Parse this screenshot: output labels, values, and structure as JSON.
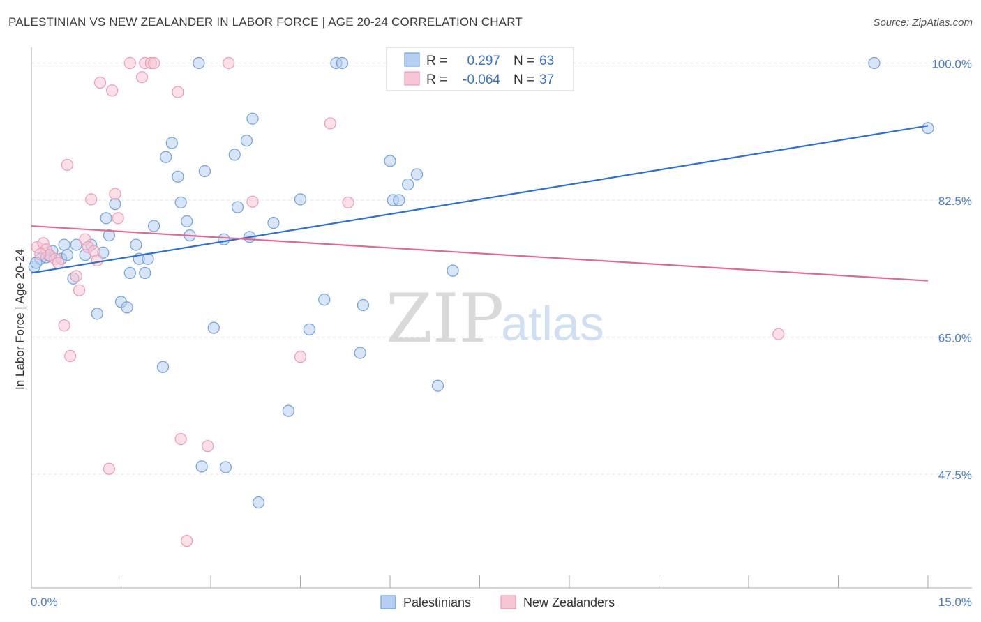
{
  "title": "PALESTINIAN VS NEW ZEALANDER IN LABOR FORCE | AGE 20-24 CORRELATION CHART",
  "source": "Source: ZipAtlas.com",
  "watermark": {
    "zip": "ZIP",
    "atlas": "atlas"
  },
  "chart_data": {
    "type": "scatter",
    "title": "PALESTINIAN VS NEW ZEALANDER IN LABOR FORCE | AGE 20-24 CORRELATION CHART",
    "xlabel": "",
    "ylabel": "In Labor Force | Age 20-24",
    "xlim": [
      0.0,
      15.0
    ],
    "ylim": [
      33.0,
      102.0
    ],
    "x_tick_labels": {
      "left": "0.0%",
      "right": "15.0%"
    },
    "y_ticks": [
      {
        "value": 100.0,
        "label": "100.0%"
      },
      {
        "value": 82.5,
        "label": "82.5%"
      },
      {
        "value": 65.0,
        "label": "65.0%"
      },
      {
        "value": 47.5,
        "label": "47.5%"
      }
    ],
    "legend": {
      "position": "top-center",
      "entries": [
        {
          "series": "Palestinians",
          "r_label": "R =",
          "r_value": "0.297",
          "n_label": "N =",
          "n_value": "63"
        },
        {
          "series": "New Zealanders",
          "r_label": "R =",
          "r_value": "-0.064",
          "n_label": "N =",
          "n_value": "37"
        }
      ]
    },
    "series": [
      {
        "name": "Palestinians",
        "color": "#6fa0dd",
        "fill": "#b6cff0",
        "line_color": "#2e6fd1",
        "trend": {
          "x": [
            0.0,
            15.0
          ],
          "y": [
            73.2,
            92.0
          ]
        },
        "points": [
          [
            0.05,
            74.0
          ],
          [
            0.15,
            75.0
          ],
          [
            0.25,
            75.2
          ],
          [
            0.35,
            76.0
          ],
          [
            0.5,
            75.0
          ],
          [
            0.55,
            76.8
          ],
          [
            0.6,
            75.5
          ],
          [
            0.7,
            72.5
          ],
          [
            0.75,
            76.8
          ],
          [
            0.9,
            75.5
          ],
          [
            1.0,
            76.8
          ],
          [
            1.1,
            68.0
          ],
          [
            1.25,
            80.2
          ],
          [
            1.3,
            78.0
          ],
          [
            1.4,
            82.0
          ],
          [
            1.5,
            69.5
          ],
          [
            1.6,
            68.8
          ],
          [
            1.65,
            73.2
          ],
          [
            1.75,
            76.8
          ],
          [
            1.8,
            75.0
          ],
          [
            1.9,
            73.2
          ],
          [
            1.95,
            75.0
          ],
          [
            2.05,
            79.2
          ],
          [
            2.2,
            61.2
          ],
          [
            2.25,
            88.0
          ],
          [
            2.35,
            89.8
          ],
          [
            2.45,
            85.5
          ],
          [
            2.5,
            82.2
          ],
          [
            2.6,
            79.8
          ],
          [
            2.65,
            78.0
          ],
          [
            2.8,
            100.0
          ],
          [
            2.85,
            48.5
          ],
          [
            2.9,
            86.2
          ],
          [
            3.05,
            66.2
          ],
          [
            3.22,
            77.5
          ],
          [
            3.25,
            48.4
          ],
          [
            3.4,
            88.3
          ],
          [
            3.45,
            81.6
          ],
          [
            3.6,
            90.1
          ],
          [
            3.65,
            77.8
          ],
          [
            3.7,
            92.9
          ],
          [
            3.8,
            43.9
          ],
          [
            4.05,
            79.6
          ],
          [
            4.3,
            55.6
          ],
          [
            4.5,
            82.6
          ],
          [
            4.65,
            66.0
          ],
          [
            4.9,
            69.8
          ],
          [
            5.1,
            100.0
          ],
          [
            5.2,
            100.0
          ],
          [
            5.5,
            63.0
          ],
          [
            5.55,
            69.1
          ],
          [
            6.0,
            87.5
          ],
          [
            6.05,
            82.5
          ],
          [
            6.15,
            82.5
          ],
          [
            6.3,
            84.5
          ],
          [
            6.45,
            85.8
          ],
          [
            6.8,
            58.8
          ],
          [
            7.05,
            73.5
          ],
          [
            14.1,
            100.0
          ],
          [
            15.0,
            91.7
          ],
          [
            0.08,
            74.5
          ],
          [
            0.3,
            75.4
          ],
          [
            1.2,
            75.8
          ]
        ]
      },
      {
        "name": "New Zealanders",
        "color": "#ef9ab5",
        "fill": "#f7c6d5",
        "line_color": "#e06992",
        "trend": {
          "x": [
            0.0,
            15.0
          ],
          "y": [
            79.2,
            72.2
          ]
        },
        "points": [
          [
            0.1,
            76.5
          ],
          [
            0.2,
            77.0
          ],
          [
            0.25,
            76.2
          ],
          [
            0.3,
            75.5
          ],
          [
            0.4,
            75.0
          ],
          [
            0.45,
            74.5
          ],
          [
            0.55,
            66.5
          ],
          [
            0.6,
            87.0
          ],
          [
            0.65,
            62.6
          ],
          [
            0.75,
            72.8
          ],
          [
            0.8,
            71.0
          ],
          [
            0.9,
            77.5
          ],
          [
            0.95,
            76.5
          ],
          [
            1.0,
            82.6
          ],
          [
            1.05,
            76.0
          ],
          [
            1.1,
            74.8
          ],
          [
            1.15,
            97.5
          ],
          [
            1.3,
            48.2
          ],
          [
            1.35,
            96.5
          ],
          [
            1.4,
            83.3
          ],
          [
            1.45,
            80.2
          ],
          [
            1.65,
            100.0
          ],
          [
            1.85,
            98.2
          ],
          [
            1.9,
            100.0
          ],
          [
            2.0,
            100.0
          ],
          [
            2.05,
            100.0
          ],
          [
            2.45,
            96.3
          ],
          [
            2.5,
            52.0
          ],
          [
            2.6,
            39.0
          ],
          [
            2.95,
            51.1
          ],
          [
            3.3,
            100.0
          ],
          [
            3.7,
            82.3
          ],
          [
            4.5,
            62.5
          ],
          [
            5.0,
            92.3
          ],
          [
            5.3,
            82.2
          ],
          [
            12.5,
            65.4
          ],
          [
            0.15,
            75.6
          ]
        ]
      }
    ]
  }
}
